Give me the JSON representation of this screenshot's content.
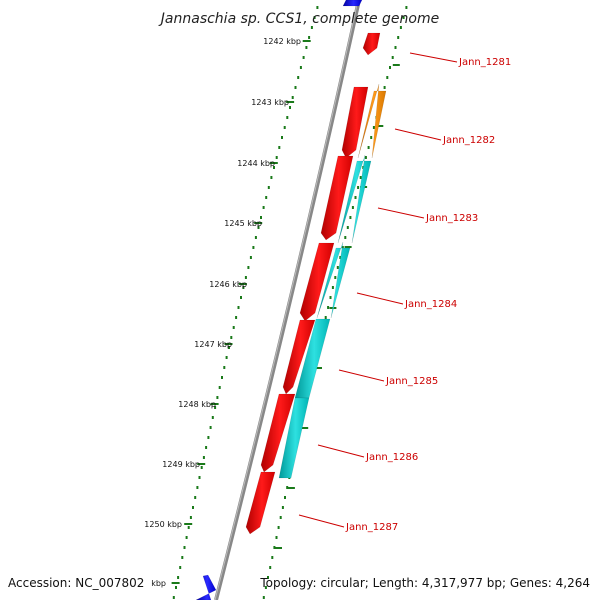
{
  "title": "Jannaschia sp. CCS1, complete genome",
  "accession": "Accession: NC_007802",
  "topology": "Topology: circular; Length: 4,317,977 bp; Genes: 4,264",
  "kbp_labels": [
    "1242 kbp",
    "1243 kbp",
    "1244 kbp",
    "1245 kbp",
    "1246 kbp",
    "1247 kbp",
    "1248 kbp",
    "1249 kbp",
    "1250 kbp",
    "kbp"
  ],
  "gene_labels": [
    "Jann_1281",
    "Jann_1282",
    "Jann_1283",
    "Jann_1284",
    "Jann_1285",
    "Jann_1286",
    "Jann_1287"
  ],
  "colors": {
    "red": "#ff0000",
    "orange": "#ff8c00",
    "cyan": "#00cccc",
    "blue": "#0000ee",
    "backbone": "#8a8a8a",
    "tick": "#1a7a1a",
    "label": "#cc0000"
  }
}
